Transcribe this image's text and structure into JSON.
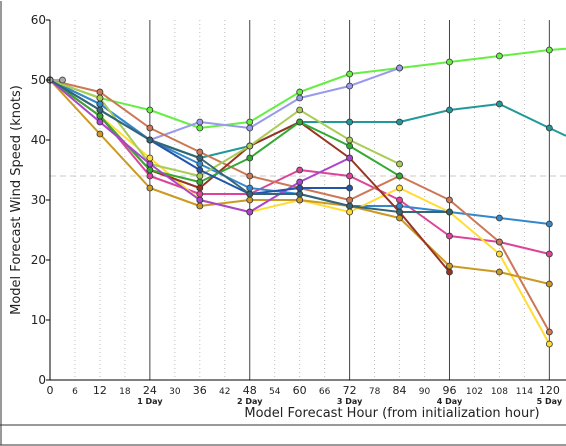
{
  "chart_data": {
    "type": "line",
    "title": "",
    "xlabel": "Model Forecast Hour (from initialization hour)",
    "ylabel": "Model Forecast Wind Speed (knots)",
    "xlim": [
      0,
      124
    ],
    "ylim": [
      0,
      60
    ],
    "x_ticks": [
      0,
      6,
      12,
      18,
      24,
      30,
      36,
      42,
      48,
      54,
      60,
      66,
      72,
      78,
      84,
      90,
      96,
      102,
      108,
      114,
      120
    ],
    "x_tick_labels": [
      "0",
      "6",
      "12",
      "18",
      "24",
      "30",
      "36",
      "42",
      "48",
      "54",
      "60",
      "66",
      "72",
      "78",
      "84",
      "90",
      "96",
      "102",
      "108",
      "114",
      "120"
    ],
    "y_ticks": [
      0,
      10,
      20,
      30,
      40,
      50,
      60
    ],
    "y_tick_labels": [
      "0",
      "10",
      "20",
      "30",
      "40",
      "50",
      "60"
    ],
    "day_labels": [
      {
        "x": 24,
        "label": "1 Day"
      },
      {
        "x": 48,
        "label": "2 Day"
      },
      {
        "x": 72,
        "label": "3 Day"
      },
      {
        "x": 96,
        "label": "4 Day"
      },
      {
        "x": 120,
        "label": "5 Day"
      }
    ],
    "grid": "vertical lines each 6 h (dotted), solid each 24 h; dashed reference at 34 kt",
    "reference_line_y": 34,
    "series": [
      {
        "color": "#66ee44",
        "x": [
          0,
          12,
          24,
          36,
          48,
          60,
          72,
          84,
          96,
          108,
          120,
          124
        ],
        "y": [
          50,
          47,
          45,
          42,
          43,
          48,
          51,
          52,
          53,
          54,
          55,
          55.2
        ]
      },
      {
        "color": "#9999ee",
        "x": [
          0,
          12,
          24,
          36,
          48,
          60,
          72,
          84
        ],
        "y": [
          50,
          46,
          40,
          43,
          42,
          47,
          49,
          52
        ]
      },
      {
        "color": "#229999",
        "x": [
          0,
          12,
          24,
          36,
          48,
          60,
          72,
          84,
          96,
          108,
          120,
          124
        ],
        "y": [
          50,
          46,
          40,
          37,
          39,
          43,
          43,
          43,
          45,
          46,
          42,
          40.7
        ]
      },
      {
        "color": "#dd4499",
        "x": [
          0,
          12,
          24,
          36,
          48,
          60,
          72,
          84,
          96,
          108,
          120
        ],
        "y": [
          50,
          44,
          34,
          31,
          31,
          35,
          34,
          30,
          24,
          23,
          21
        ]
      },
      {
        "color": "#3388cc",
        "x": [
          0,
          12,
          24,
          36,
          48,
          60,
          72,
          84,
          96,
          108,
          120
        ],
        "y": [
          50,
          46,
          40,
          36,
          32,
          31,
          29,
          29,
          28,
          27,
          26
        ]
      },
      {
        "color": "#ffdd33",
        "x": [
          0,
          12,
          24,
          36,
          48,
          60,
          72,
          84,
          96,
          108,
          120
        ],
        "y": [
          50,
          44,
          37,
          30,
          28,
          30,
          28,
          32,
          28,
          21,
          6
        ]
      },
      {
        "color": "#cc7755",
        "x": [
          0,
          12,
          24,
          36,
          48,
          60,
          72,
          84,
          96,
          108,
          120
        ],
        "y": [
          50,
          48,
          42,
          38,
          34,
          32,
          30,
          34,
          30,
          23,
          8
        ]
      },
      {
        "color": "#cc9922",
        "x": [
          0,
          12,
          24,
          36,
          48,
          60,
          72,
          84,
          96,
          108,
          120
        ],
        "y": [
          50,
          41,
          32,
          29,
          30,
          30,
          29,
          27,
          19,
          18,
          16
        ]
      },
      {
        "color": "#993322",
        "x": [
          0,
          12,
          24,
          36,
          48,
          60,
          72,
          84,
          96
        ],
        "y": [
          50,
          44,
          35,
          32,
          39,
          43,
          37,
          28,
          18
        ]
      },
      {
        "color": "#aacc55",
        "x": [
          0,
          12,
          24,
          36,
          48,
          60,
          72,
          84
        ],
        "y": [
          50,
          47,
          36,
          34,
          39,
          45,
          40,
          36
        ]
      },
      {
        "color": "#33aa33",
        "x": [
          0,
          12,
          24,
          36,
          48,
          60,
          72,
          84
        ],
        "y": [
          50,
          44,
          35,
          33,
          37,
          43,
          39,
          34
        ]
      },
      {
        "color": "#aa44cc",
        "x": [
          0,
          12,
          24,
          36,
          48,
          60,
          72
        ],
        "y": [
          50,
          43,
          36,
          30,
          28,
          33,
          37
        ]
      },
      {
        "color": "#2255aa",
        "x": [
          0,
          12,
          24,
          36,
          48,
          60,
          72
        ],
        "y": [
          50,
          45,
          40,
          35,
          31,
          32,
          32
        ]
      },
      {
        "color": "#336677",
        "x": [
          0,
          12,
          24,
          36,
          48,
          60,
          72,
          84,
          96
        ],
        "y": [
          50,
          45,
          40,
          37,
          31,
          31,
          29,
          28,
          28
        ]
      },
      {
        "color": "#aaaaaa",
        "x": [
          0,
          3
        ],
        "y": [
          50,
          50
        ]
      }
    ]
  }
}
